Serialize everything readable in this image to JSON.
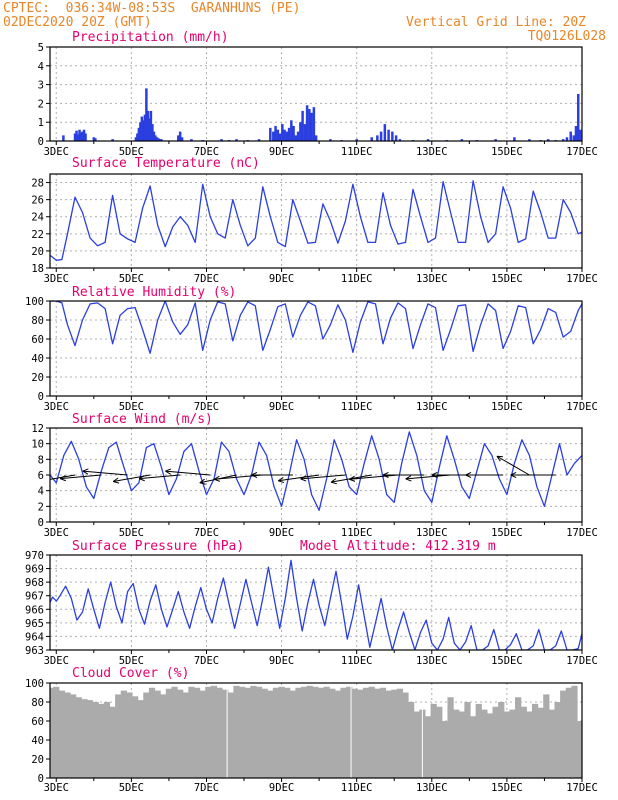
{
  "header": {
    "line1_left": "CPTEC:  036:34W-08:53S  GARANHUNS (PE)",
    "line2_left": "02DEC2020 20Z (GMT)",
    "line1_right": "Vertical Grid Line: 20Z",
    "line2_right": "TQ0126L028"
  },
  "colors": {
    "header": "#e8862a",
    "title": "#e6006e",
    "line": "#2b3fe0",
    "bar": "#2b3fe0",
    "cloud": "#ababab",
    "grid": "#b0b0b0",
    "arrow": "#000000"
  },
  "x_axis": {
    "start": "02DEC2020 20Z",
    "end": "17DEC2020 00Z",
    "tick_labels": [
      "3DEC",
      "5DEC",
      "7DEC",
      "9DEC",
      "11DEC",
      "13DEC",
      "15DEC",
      "17DEC"
    ],
    "tick_days": [
      3,
      5,
      7,
      9,
      11,
      13,
      15,
      17
    ],
    "day_start": 2.8333,
    "day_end": 17.0
  },
  "chart_data": [
    {
      "type": "bar",
      "title": "Precipitation (mm/h)",
      "ylim": [
        0,
        5
      ],
      "yticks": [
        0,
        1,
        2,
        3,
        4,
        5
      ],
      "x_day": [
        3.19,
        3.5,
        3.54,
        3.58,
        3.62,
        3.66,
        3.7,
        3.74,
        3.78,
        4.0,
        4.04,
        4.5,
        5.12,
        5.16,
        5.2,
        5.24,
        5.28,
        5.32,
        5.36,
        5.4,
        5.44,
        5.48,
        5.52,
        5.56,
        5.6,
        5.64,
        5.68,
        5.72,
        5.76,
        5.8,
        6.25,
        6.3,
        6.35,
        6.6,
        6.9,
        7.4,
        7.6,
        7.8,
        8.1,
        8.4,
        8.7,
        8.78,
        8.84,
        8.9,
        8.96,
        9.02,
        9.08,
        9.14,
        9.2,
        9.26,
        9.32,
        9.38,
        9.44,
        9.5,
        9.56,
        9.62,
        9.68,
        9.74,
        9.8,
        9.86,
        9.92,
        10.3,
        10.6,
        11.0,
        11.4,
        11.55,
        11.65,
        11.75,
        11.85,
        11.95,
        12.05,
        12.15,
        12.5,
        12.9,
        13.4,
        13.8,
        14.2,
        14.7,
        15.2,
        15.6,
        15.9,
        16.1,
        16.3,
        16.5,
        16.6,
        16.7,
        16.78,
        16.84,
        16.9,
        16.95
      ],
      "values": [
        0.3,
        0.4,
        0.55,
        0.35,
        0.6,
        0.45,
        0.5,
        0.6,
        0.4,
        0.2,
        0.15,
        0.1,
        0.2,
        0.4,
        0.7,
        1.0,
        1.3,
        1.1,
        1.4,
        2.8,
        1.6,
        1.2,
        1.6,
        0.9,
        0.5,
        0.3,
        0.2,
        0.15,
        0.1,
        0.1,
        0.3,
        0.5,
        0.2,
        0.1,
        0.05,
        0.1,
        0.05,
        0.1,
        0.05,
        0.1,
        0.7,
        0.5,
        0.8,
        0.6,
        0.4,
        0.9,
        0.6,
        0.5,
        0.7,
        1.1,
        0.8,
        0.3,
        0.5,
        1.0,
        1.6,
        0.9,
        1.9,
        1.7,
        1.5,
        1.8,
        0.3,
        0.1,
        0.05,
        0.1,
        0.2,
        0.3,
        0.5,
        0.9,
        0.6,
        0.5,
        0.3,
        0.1,
        0.05,
        0.1,
        0.05,
        0.1,
        0.05,
        0.1,
        0.2,
        0.1,
        0.05,
        0.1,
        0.05,
        0.1,
        0.2,
        0.5,
        0.3,
        0.8,
        2.5,
        0.6
      ]
    },
    {
      "type": "line",
      "title": "Surface Temperature (nC)",
      "ylim": [
        18,
        29
      ],
      "yticks": [
        18,
        20,
        22,
        24,
        26,
        28
      ],
      "times": [
        2.8333,
        3.0,
        3.15,
        3.3,
        3.5,
        3.7,
        3.9,
        4.1,
        4.3,
        4.5,
        4.7,
        4.9,
        5.1,
        5.3,
        5.5,
        5.7,
        5.9,
        6.1,
        6.3,
        6.5,
        6.7,
        6.9,
        7.1,
        7.3,
        7.5,
        7.7,
        7.9,
        8.1,
        8.3,
        8.5,
        8.7,
        8.9,
        9.1,
        9.3,
        9.5,
        9.7,
        9.9,
        10.1,
        10.3,
        10.5,
        10.7,
        10.9,
        11.1,
        11.3,
        11.5,
        11.7,
        11.9,
        12.1,
        12.3,
        12.5,
        12.7,
        12.9,
        13.1,
        13.3,
        13.5,
        13.7,
        13.9,
        14.1,
        14.3,
        14.5,
        14.7,
        14.9,
        15.1,
        15.3,
        15.5,
        15.7,
        15.9,
        16.1,
        16.3,
        16.5,
        16.7,
        16.9,
        17.0
      ],
      "values": [
        19.5,
        18.9,
        19.0,
        22.0,
        26.3,
        24.5,
        21.5,
        20.6,
        21.0,
        26.5,
        22.0,
        21.4,
        21.0,
        25.0,
        27.6,
        23.0,
        20.5,
        22.8,
        24.0,
        23.0,
        21.0,
        27.8,
        24.0,
        22.0,
        21.5,
        26.0,
        23.0,
        20.6,
        21.5,
        27.5,
        24.0,
        21.0,
        20.5,
        26.0,
        23.5,
        20.9,
        21.0,
        25.5,
        23.5,
        20.9,
        23.5,
        27.8,
        24.0,
        21.0,
        21.0,
        26.8,
        23.0,
        20.8,
        21.0,
        27.2,
        24.0,
        21.0,
        21.5,
        28.1,
        24.5,
        21.0,
        21.0,
        28.2,
        24.0,
        21.0,
        22.0,
        27.5,
        25.0,
        21.0,
        21.4,
        27.0,
        24.5,
        21.5,
        21.5,
        26.0,
        24.5,
        22.0,
        22.2
      ]
    },
    {
      "type": "line",
      "title": "Relative Humidity (%)",
      "ylim": [
        0,
        100
      ],
      "yticks": [
        0,
        20,
        40,
        60,
        80,
        100
      ],
      "times": [
        2.8333,
        3.0,
        3.15,
        3.3,
        3.5,
        3.7,
        3.9,
        4.1,
        4.3,
        4.5,
        4.7,
        4.9,
        5.1,
        5.3,
        5.5,
        5.7,
        5.9,
        6.1,
        6.3,
        6.5,
        6.7,
        6.9,
        7.1,
        7.3,
        7.5,
        7.7,
        7.9,
        8.1,
        8.3,
        8.5,
        8.7,
        8.9,
        9.1,
        9.3,
        9.5,
        9.7,
        9.9,
        10.1,
        10.3,
        10.5,
        10.7,
        10.9,
        11.1,
        11.3,
        11.5,
        11.7,
        11.9,
        12.1,
        12.3,
        12.5,
        12.7,
        12.9,
        13.1,
        13.3,
        13.5,
        13.7,
        13.9,
        14.1,
        14.3,
        14.5,
        14.7,
        14.9,
        15.1,
        15.3,
        15.5,
        15.7,
        15.9,
        16.1,
        16.3,
        16.5,
        16.7,
        16.9,
        17.0
      ],
      "values": [
        100,
        100,
        98,
        75,
        53,
        80,
        97,
        98,
        92,
        55,
        85,
        92,
        93,
        70,
        45,
        80,
        100,
        78,
        65,
        75,
        98,
        48,
        80,
        99,
        97,
        58,
        85,
        99,
        95,
        48,
        70,
        94,
        97,
        62,
        85,
        99,
        95,
        60,
        75,
        96,
        80,
        46,
        78,
        99,
        97,
        55,
        82,
        98,
        92,
        50,
        75,
        97,
        93,
        48,
        70,
        95,
        96,
        47,
        75,
        97,
        90,
        50,
        68,
        95,
        93,
        55,
        70,
        92,
        88,
        62,
        68,
        90,
        97
      ]
    },
    {
      "type": "line",
      "title": "Surface Wind (m/s)",
      "ylim": [
        0,
        12
      ],
      "yticks": [
        0,
        2,
        4,
        6,
        8,
        10,
        12
      ],
      "times": [
        2.8333,
        3.0,
        3.2,
        3.4,
        3.6,
        3.8,
        4.0,
        4.2,
        4.4,
        4.6,
        4.8,
        5.0,
        5.2,
        5.4,
        5.6,
        5.8,
        6.0,
        6.2,
        6.4,
        6.6,
        6.8,
        7.0,
        7.2,
        7.4,
        7.6,
        7.8,
        8.0,
        8.2,
        8.4,
        8.6,
        8.8,
        9.0,
        9.2,
        9.4,
        9.6,
        9.8,
        10.0,
        10.2,
        10.4,
        10.6,
        10.8,
        11.0,
        11.2,
        11.4,
        11.6,
        11.8,
        12.0,
        12.2,
        12.4,
        12.6,
        12.8,
        13.0,
        13.2,
        13.4,
        13.6,
        13.8,
        14.0,
        14.2,
        14.4,
        14.6,
        14.8,
        15.0,
        15.2,
        15.4,
        15.6,
        15.8,
        16.0,
        16.2,
        16.4,
        16.6,
        16.8,
        17.0
      ],
      "values": [
        6.0,
        5.0,
        8.5,
        10.3,
        8.0,
        4.5,
        3.0,
        6.5,
        9.5,
        10.2,
        7.0,
        4.0,
        5.0,
        9.5,
        10.0,
        7.0,
        3.5,
        5.5,
        9.0,
        10.0,
        6.5,
        3.5,
        5.5,
        10.2,
        9.0,
        5.5,
        3.5,
        6.0,
        10.2,
        8.5,
        4.5,
        2.0,
        6.0,
        10.5,
        8.0,
        3.5,
        1.5,
        5.5,
        10.5,
        8.0,
        4.5,
        3.5,
        7.5,
        11.0,
        8.0,
        3.5,
        2.5,
        7.5,
        11.5,
        8.5,
        4.0,
        2.5,
        7.0,
        11.0,
        8.0,
        4.5,
        3.0,
        6.5,
        10.0,
        8.5,
        5.5,
        3.5,
        7.5,
        10.5,
        8.5,
        4.5,
        2.0,
        6.0,
        10.0,
        6.0,
        7.5,
        8.5
      ],
      "arrows": [
        {
          "day": 3.5,
          "len": 6.5,
          "dir": 10
        },
        {
          "day": 4.2,
          "len": 5.5,
          "dir": 5
        },
        {
          "day": 4.9,
          "len": 6.0,
          "dir": -5
        },
        {
          "day": 5.5,
          "len": 5.0,
          "dir": 10
        },
        {
          "day": 6.3,
          "len": 5.5,
          "dir": 5
        },
        {
          "day": 7.1,
          "len": 6.0,
          "dir": -5
        },
        {
          "day": 7.8,
          "len": 5.0,
          "dir": 12
        },
        {
          "day": 8.5,
          "len": 6.5,
          "dir": 5
        },
        {
          "day": 9.3,
          "len": 5.5,
          "dir": 0
        },
        {
          "day": 10.0,
          "len": 5.5,
          "dir": 8
        },
        {
          "day": 10.7,
          "len": 6.0,
          "dir": 5
        },
        {
          "day": 11.4,
          "len": 5.5,
          "dir": 10
        },
        {
          "day": 12.1,
          "len": 6.5,
          "dir": 5
        },
        {
          "day": 12.8,
          "len": 5.5,
          "dir": 0
        },
        {
          "day": 13.5,
          "len": 6.0,
          "dir": 5
        },
        {
          "day": 14.2,
          "len": 6.0,
          "dir": 0
        },
        {
          "day": 14.9,
          "len": 5.0,
          "dir": 0
        },
        {
          "day": 15.6,
          "len": 5.0,
          "dir": -30
        },
        {
          "day": 16.3,
          "len": 6.0,
          "dir": 0
        }
      ]
    },
    {
      "type": "line",
      "title": "Surface Pressure (hPa)",
      "annotation": "Model Altitude: 412.319 m",
      "ylim": [
        963,
        970
      ],
      "yticks": [
        963,
        964,
        965,
        966,
        967,
        968,
        969,
        970
      ],
      "times": [
        2.8333,
        2.9,
        3.0,
        3.1,
        3.25,
        3.4,
        3.55,
        3.7,
        3.85,
        4.0,
        4.15,
        4.3,
        4.45,
        4.6,
        4.75,
        4.9,
        5.05,
        5.2,
        5.35,
        5.5,
        5.65,
        5.8,
        5.95,
        6.1,
        6.25,
        6.4,
        6.55,
        6.7,
        6.85,
        7.0,
        7.15,
        7.3,
        7.45,
        7.6,
        7.75,
        7.9,
        8.05,
        8.2,
        8.35,
        8.5,
        8.65,
        8.8,
        8.95,
        9.1,
        9.25,
        9.4,
        9.55,
        9.7,
        9.85,
        10.0,
        10.15,
        10.3,
        10.45,
        10.6,
        10.75,
        10.9,
        11.05,
        11.2,
        11.35,
        11.5,
        11.65,
        11.8,
        11.95,
        12.1,
        12.25,
        12.4,
        12.55,
        12.7,
        12.85,
        13.0,
        13.15,
        13.3,
        13.45,
        13.6,
        13.75,
        13.9,
        14.05,
        14.2,
        14.35,
        14.5,
        14.65,
        14.8,
        14.95,
        15.1,
        15.25,
        15.4,
        15.55,
        15.7,
        15.85,
        16.0,
        16.15,
        16.3,
        16.45,
        16.6,
        16.75,
        16.9,
        17.0
      ],
      "values": [
        966.5,
        966.9,
        966.6,
        967.0,
        967.7,
        966.8,
        965.2,
        965.8,
        967.5,
        966.0,
        964.6,
        966.5,
        968.0,
        966.2,
        965.0,
        967.3,
        967.9,
        966.0,
        964.9,
        966.6,
        967.8,
        966.0,
        964.7,
        966.0,
        967.3,
        965.8,
        964.6,
        966.2,
        967.6,
        966.0,
        965.0,
        966.8,
        968.3,
        966.4,
        964.6,
        966.4,
        968.2,
        966.5,
        964.8,
        966.8,
        969.1,
        966.8,
        964.6,
        966.8,
        969.6,
        966.8,
        964.4,
        966.5,
        968.2,
        966.3,
        964.8,
        966.8,
        968.8,
        966.4,
        963.8,
        965.5,
        967.8,
        965.5,
        963.2,
        965.0,
        966.8,
        964.7,
        963.0,
        964.5,
        965.8,
        964.3,
        963.0,
        964.3,
        965.2,
        963.5,
        962.0,
        963.8,
        965.4,
        963.5,
        962.5,
        963.6,
        964.8,
        963.0,
        962.0,
        963.3,
        964.5,
        963.0,
        962.0,
        963.4,
        964.2,
        962.8,
        962.0,
        963.3,
        964.5,
        963.0,
        962.0,
        963.3,
        964.4,
        963.0,
        962.0,
        963.1,
        964.2
      ]
    },
    {
      "type": "bar",
      "title": "Cloud Cover (%)",
      "ylim": [
        0,
        100
      ],
      "yticks": [
        0,
        20,
        40,
        60,
        80,
        100
      ],
      "x_day": [
        2.85,
        3.0,
        3.15,
        3.3,
        3.45,
        3.6,
        3.75,
        3.9,
        4.05,
        4.2,
        4.35,
        4.5,
        4.65,
        4.8,
        4.95,
        5.1,
        5.25,
        5.4,
        5.55,
        5.7,
        5.85,
        6.0,
        6.15,
        6.3,
        6.45,
        6.6,
        6.75,
        6.9,
        7.05,
        7.2,
        7.35,
        7.5,
        7.65,
        7.8,
        7.95,
        8.1,
        8.25,
        8.4,
        8.55,
        8.7,
        8.85,
        9.0,
        9.15,
        9.3,
        9.45,
        9.6,
        9.75,
        9.9,
        10.05,
        10.2,
        10.35,
        10.5,
        10.65,
        10.8,
        10.95,
        11.1,
        11.25,
        11.4,
        11.55,
        11.7,
        11.85,
        12.0,
        12.15,
        12.3,
        12.45,
        12.6,
        12.75,
        12.9,
        13.05,
        13.2,
        13.35,
        13.5,
        13.65,
        13.8,
        13.95,
        14.1,
        14.25,
        14.4,
        14.55,
        14.7,
        14.85,
        15.0,
        15.15,
        15.3,
        15.45,
        15.6,
        15.75,
        15.9,
        16.05,
        16.2,
        16.35,
        16.5,
        16.65,
        16.8,
        16.95
      ],
      "values": [
        95,
        96,
        92,
        90,
        88,
        85,
        83,
        82,
        80,
        78,
        80,
        75,
        88,
        92,
        90,
        86,
        82,
        90,
        95,
        92,
        88,
        94,
        96,
        93,
        90,
        96,
        95,
        92,
        96,
        97,
        95,
        93,
        90,
        97,
        96,
        95,
        97,
        96,
        94,
        92,
        95,
        96,
        95,
        92,
        95,
        96,
        97,
        96,
        95,
        96,
        94,
        92,
        95,
        96,
        94,
        93,
        95,
        96,
        94,
        95,
        92,
        93,
        94,
        90,
        80,
        70,
        72,
        65,
        78,
        75,
        60,
        85,
        72,
        70,
        80,
        65,
        78,
        72,
        68,
        75,
        80,
        70,
        72,
        85,
        75,
        70,
        78,
        74,
        88,
        72,
        80,
        92,
        95,
        97,
        60
      ]
    }
  ]
}
